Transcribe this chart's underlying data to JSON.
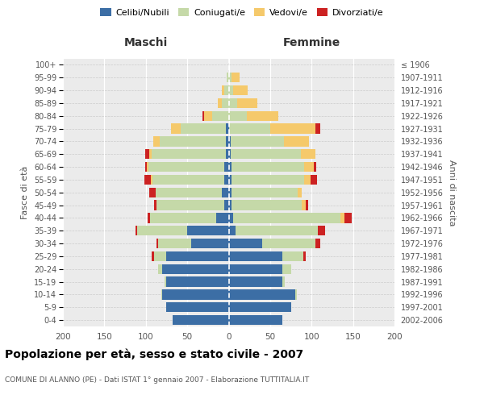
{
  "age_groups": [
    "0-4",
    "5-9",
    "10-14",
    "15-19",
    "20-24",
    "25-29",
    "30-34",
    "35-39",
    "40-44",
    "45-49",
    "50-54",
    "55-59",
    "60-64",
    "65-69",
    "70-74",
    "75-79",
    "80-84",
    "85-89",
    "90-94",
    "95-99",
    "100+"
  ],
  "birth_years": [
    "2002-2006",
    "1997-2001",
    "1992-1996",
    "1987-1991",
    "1982-1986",
    "1977-1981",
    "1972-1976",
    "1967-1971",
    "1962-1966",
    "1957-1961",
    "1952-1956",
    "1947-1951",
    "1942-1946",
    "1937-1941",
    "1932-1936",
    "1927-1931",
    "1922-1926",
    "1917-1921",
    "1912-1916",
    "1907-1911",
    "≤ 1906"
  ],
  "colors": {
    "celibi": "#3c6ea5",
    "coniugati": "#c5d9a8",
    "vedovi": "#f5c96b",
    "divorziati": "#cc2222"
  },
  "maschi": {
    "celibi": [
      68,
      75,
      80,
      75,
      80,
      75,
      45,
      50,
      15,
      5,
      8,
      5,
      5,
      3,
      3,
      3,
      0,
      0,
      0,
      0,
      0
    ],
    "coniugati": [
      0,
      0,
      1,
      2,
      5,
      15,
      40,
      60,
      80,
      82,
      80,
      87,
      92,
      90,
      80,
      55,
      20,
      8,
      5,
      2,
      0
    ],
    "vedovi": [
      0,
      0,
      0,
      0,
      0,
      0,
      0,
      0,
      0,
      0,
      0,
      2,
      2,
      3,
      8,
      12,
      10,
      5,
      3,
      0,
      0
    ],
    "divorziati": [
      0,
      0,
      0,
      0,
      0,
      3,
      2,
      2,
      3,
      3,
      8,
      8,
      2,
      5,
      0,
      0,
      2,
      0,
      0,
      0,
      0
    ]
  },
  "femmine": {
    "celibi": [
      65,
      75,
      80,
      65,
      65,
      65,
      40,
      8,
      5,
      3,
      3,
      3,
      3,
      2,
      2,
      0,
      0,
      0,
      0,
      0,
      0
    ],
    "coniugati": [
      0,
      0,
      2,
      3,
      10,
      25,
      65,
      100,
      130,
      85,
      80,
      88,
      88,
      85,
      65,
      50,
      22,
      10,
      5,
      3,
      0
    ],
    "vedovi": [
      0,
      0,
      0,
      0,
      0,
      0,
      0,
      0,
      5,
      5,
      5,
      8,
      12,
      18,
      30,
      55,
      38,
      25,
      18,
      10,
      0
    ],
    "divorziati": [
      0,
      0,
      0,
      0,
      0,
      3,
      5,
      8,
      8,
      3,
      0,
      8,
      3,
      0,
      0,
      5,
      0,
      0,
      0,
      0,
      0
    ]
  },
  "xlim": 200,
  "title": "Popolazione per età, sesso e stato civile - 2007",
  "subtitle": "COMUNE DI ALANNO (PE) - Dati ISTAT 1° gennaio 2007 - Elaborazione TUTTITALIA.IT",
  "ylabel_left": "Fasce di età",
  "ylabel_right": "Anni di nascita",
  "xlabel_left": "Maschi",
  "xlabel_right": "Femmine",
  "legend_labels": [
    "Celibi/Nubili",
    "Coniugati/e",
    "Vedovi/e",
    "Divorziati/e"
  ],
  "bg_color": "white",
  "plot_bg": "#ebebeb"
}
